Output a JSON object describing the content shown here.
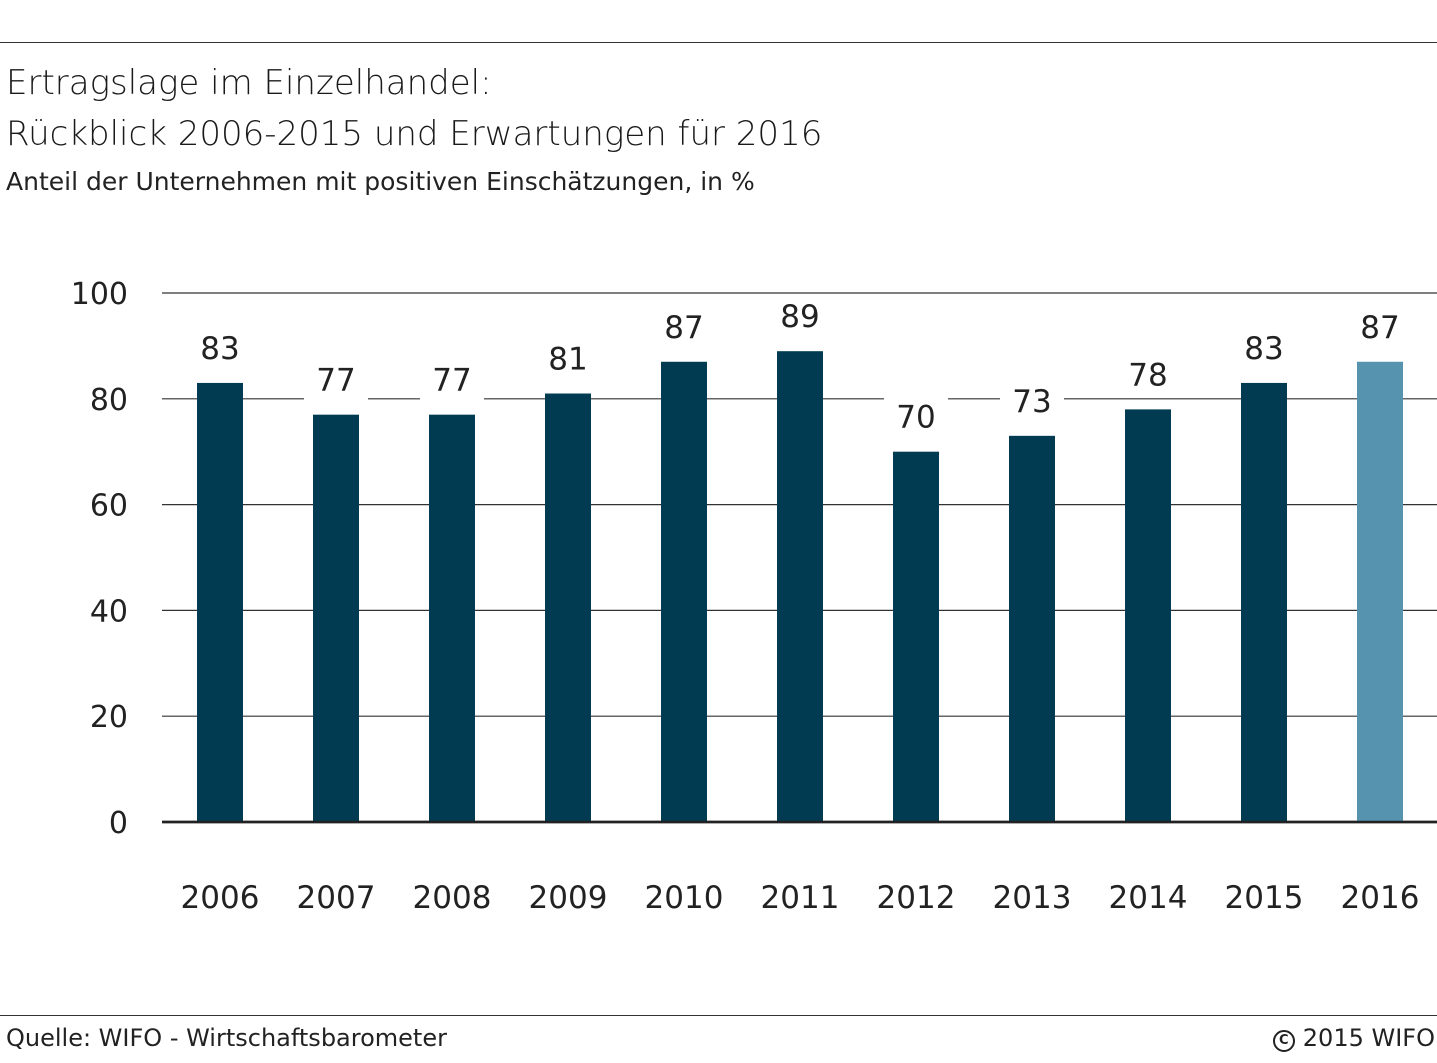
{
  "header": {
    "title_line1": "Ertragslage im Einzelhandel:",
    "title_line2": "Rückblick 2006-2015 und Erwartungen für 2016",
    "subtitle": "Anteil der Unternehmen mit positiven Einschätzungen, in %"
  },
  "footer": {
    "source": "Quelle: WIFO - Wirtschaftsbarometer",
    "copyright": "2015 WIFO",
    "copyright_icon": "copyright-icon"
  },
  "colors": {
    "bar": "#003b52",
    "bar_highlight": "#5593ae",
    "grid": "#333333"
  },
  "chart_data": {
    "type": "bar",
    "categories": [
      "2006",
      "2007",
      "2008",
      "2009",
      "2010",
      "2011",
      "2012",
      "2013",
      "2014",
      "2015",
      "2016"
    ],
    "values": [
      83,
      77,
      77,
      81,
      87,
      89,
      70,
      73,
      78,
      83,
      87
    ],
    "highlight_index": 10,
    "ylim": [
      0,
      100
    ],
    "yticks": [
      0,
      20,
      40,
      60,
      80,
      100
    ],
    "grid": true,
    "data_labels": true
  }
}
